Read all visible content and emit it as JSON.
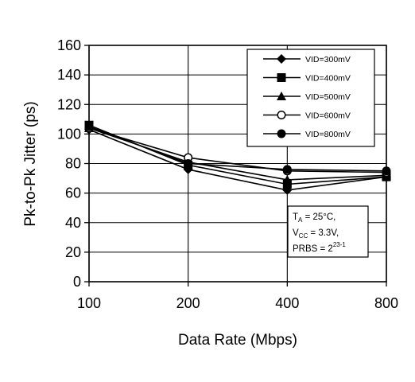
{
  "chart_data": {
    "type": "line",
    "xlabel": "Data Rate (Mbps)",
    "ylabel": "Pk-to-Pk Jitter (ps)",
    "categories": [
      "100",
      "200",
      "400",
      "800"
    ],
    "ylim": [
      0,
      160
    ],
    "yticks": [
      0,
      20,
      40,
      60,
      80,
      100,
      120,
      140,
      160
    ],
    "grid": true,
    "legend_position": "top-right",
    "series": [
      {
        "name": "VID=300mV",
        "marker": "diamond",
        "values": [
          103,
          76,
          62,
          71
        ]
      },
      {
        "name": "VID=400mV",
        "marker": "square",
        "values": [
          106,
          79,
          66,
          71
        ]
      },
      {
        "name": "VID=500mV",
        "marker": "triangle",
        "values": [
          104,
          81,
          69,
          72
        ]
      },
      {
        "name": "VID=600mV",
        "marker": "open-circle",
        "values": [
          104,
          84,
          75,
          74
        ]
      },
      {
        "name": "VID=800mV",
        "marker": "filled-circle",
        "values": [
          105,
          80,
          76,
          75
        ]
      }
    ],
    "annotation": {
      "line1": {
        "main": "T",
        "sub": "A",
        "rest": " = 25°C,"
      },
      "line2": {
        "main": "V",
        "sub": "CC",
        "rest": " = 3.3V,"
      },
      "line3": {
        "main": "PRBS = 2",
        "sup": "23-1"
      }
    }
  }
}
